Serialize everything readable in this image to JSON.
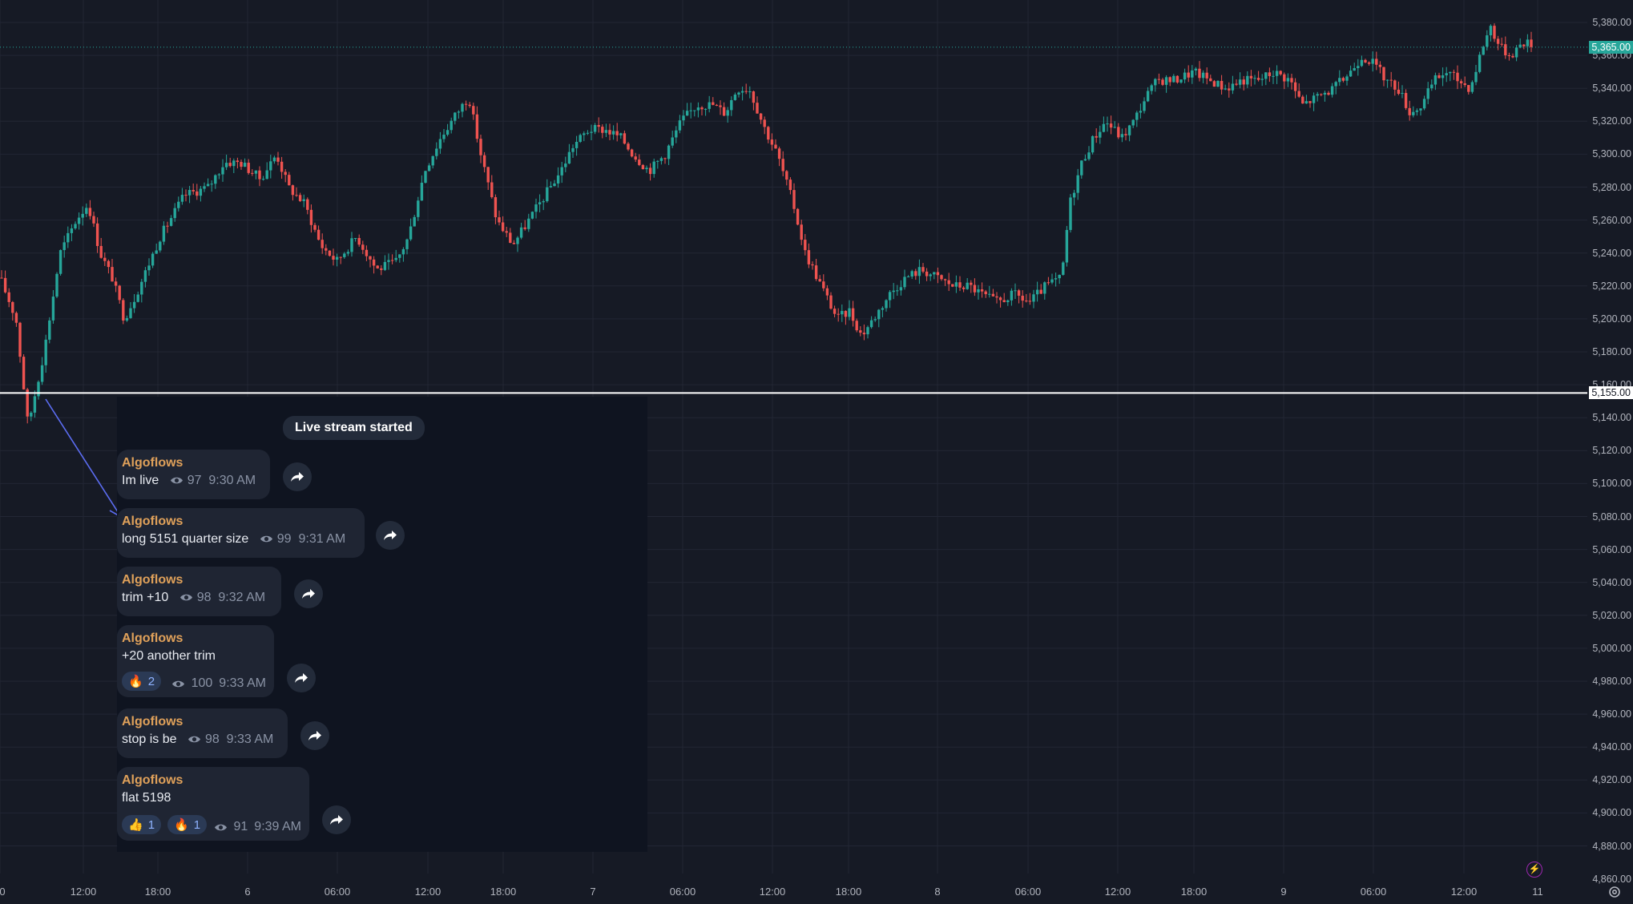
{
  "chart": {
    "price_ticks": [
      "5,380.00",
      "5,360.00",
      "5,340.00",
      "5,320.00",
      "5,300.00",
      "5,280.00",
      "5,260.00",
      "5,240.00",
      "5,220.00",
      "5,200.00",
      "5,180.00",
      "5,160.00",
      "5,140.00",
      "5,120.00",
      "5,100.00",
      "5,080.00",
      "5,060.00",
      "5,040.00",
      "5,020.00",
      "5,000.00",
      "4,980.00",
      "4,960.00",
      "4,940.00",
      "4,920.00",
      "4,900.00",
      "4,880.00",
      "4,860.00"
    ],
    "current_price": "5,365.00",
    "current_price_color": "#26a69a",
    "level_line_price": "5,155.00",
    "up_color": "#26a69a",
    "down_color": "#ef5350",
    "time_ticks": [
      "0",
      "12:00",
      "18:00",
      "6",
      "06:00",
      "12:00",
      "18:00",
      "7",
      "06:00",
      "12:00",
      "18:00",
      "8",
      "06:00",
      "12:00",
      "18:00",
      "9",
      "06:00",
      "12:00",
      "11"
    ]
  },
  "telegram": {
    "system_message": "Live stream started",
    "messages": [
      {
        "author": "Algoflows",
        "text": "Im live",
        "views": "97",
        "time": "9:30 AM"
      },
      {
        "author": "Algoflows",
        "text": "long 5151 quarter size",
        "views": "99",
        "time": "9:31 AM"
      },
      {
        "author": "Algoflows",
        "text": "trim +10",
        "views": "98",
        "time": "9:32 AM"
      },
      {
        "author": "Algoflows",
        "text": "+20 another trim",
        "views": "100",
        "time": "9:33 AM",
        "reactions": [
          {
            "emoji": "🔥",
            "count": "2"
          }
        ]
      },
      {
        "author": "Algoflows",
        "text": "stop is be",
        "views": "98",
        "time": "9:33 AM"
      },
      {
        "author": "Algoflows",
        "text": "flat 5198",
        "views": "91",
        "time": "9:39 AM",
        "reactions": [
          {
            "emoji": "👍",
            "count": "1"
          },
          {
            "emoji": "🔥",
            "count": "1"
          }
        ]
      }
    ]
  }
}
